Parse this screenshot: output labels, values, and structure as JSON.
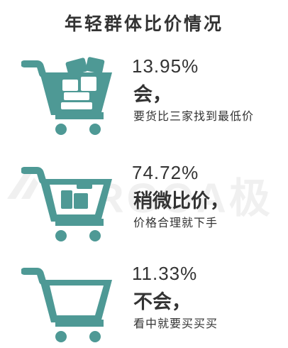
{
  "title": "年轻群体比价情况",
  "watermark": {
    "text": "VIRGOA",
    "suffix": "极"
  },
  "colors": {
    "accent": "#4e9995",
    "text": "#333333",
    "background": "#ffffff"
  },
  "items": [
    {
      "percent": "13.95%",
      "answer": "会，",
      "description": "要货比三家找到最低价",
      "fill_level": "full",
      "icon": "cart-full-icon"
    },
    {
      "percent": "74.72%",
      "answer": "稍微比价，",
      "description": "价格合理就下手",
      "fill_level": "partial",
      "icon": "cart-partial-icon"
    },
    {
      "percent": "11.33%",
      "answer": "不会，",
      "description": "看中就要买买买",
      "fill_level": "empty",
      "icon": "cart-empty-icon"
    }
  ]
}
